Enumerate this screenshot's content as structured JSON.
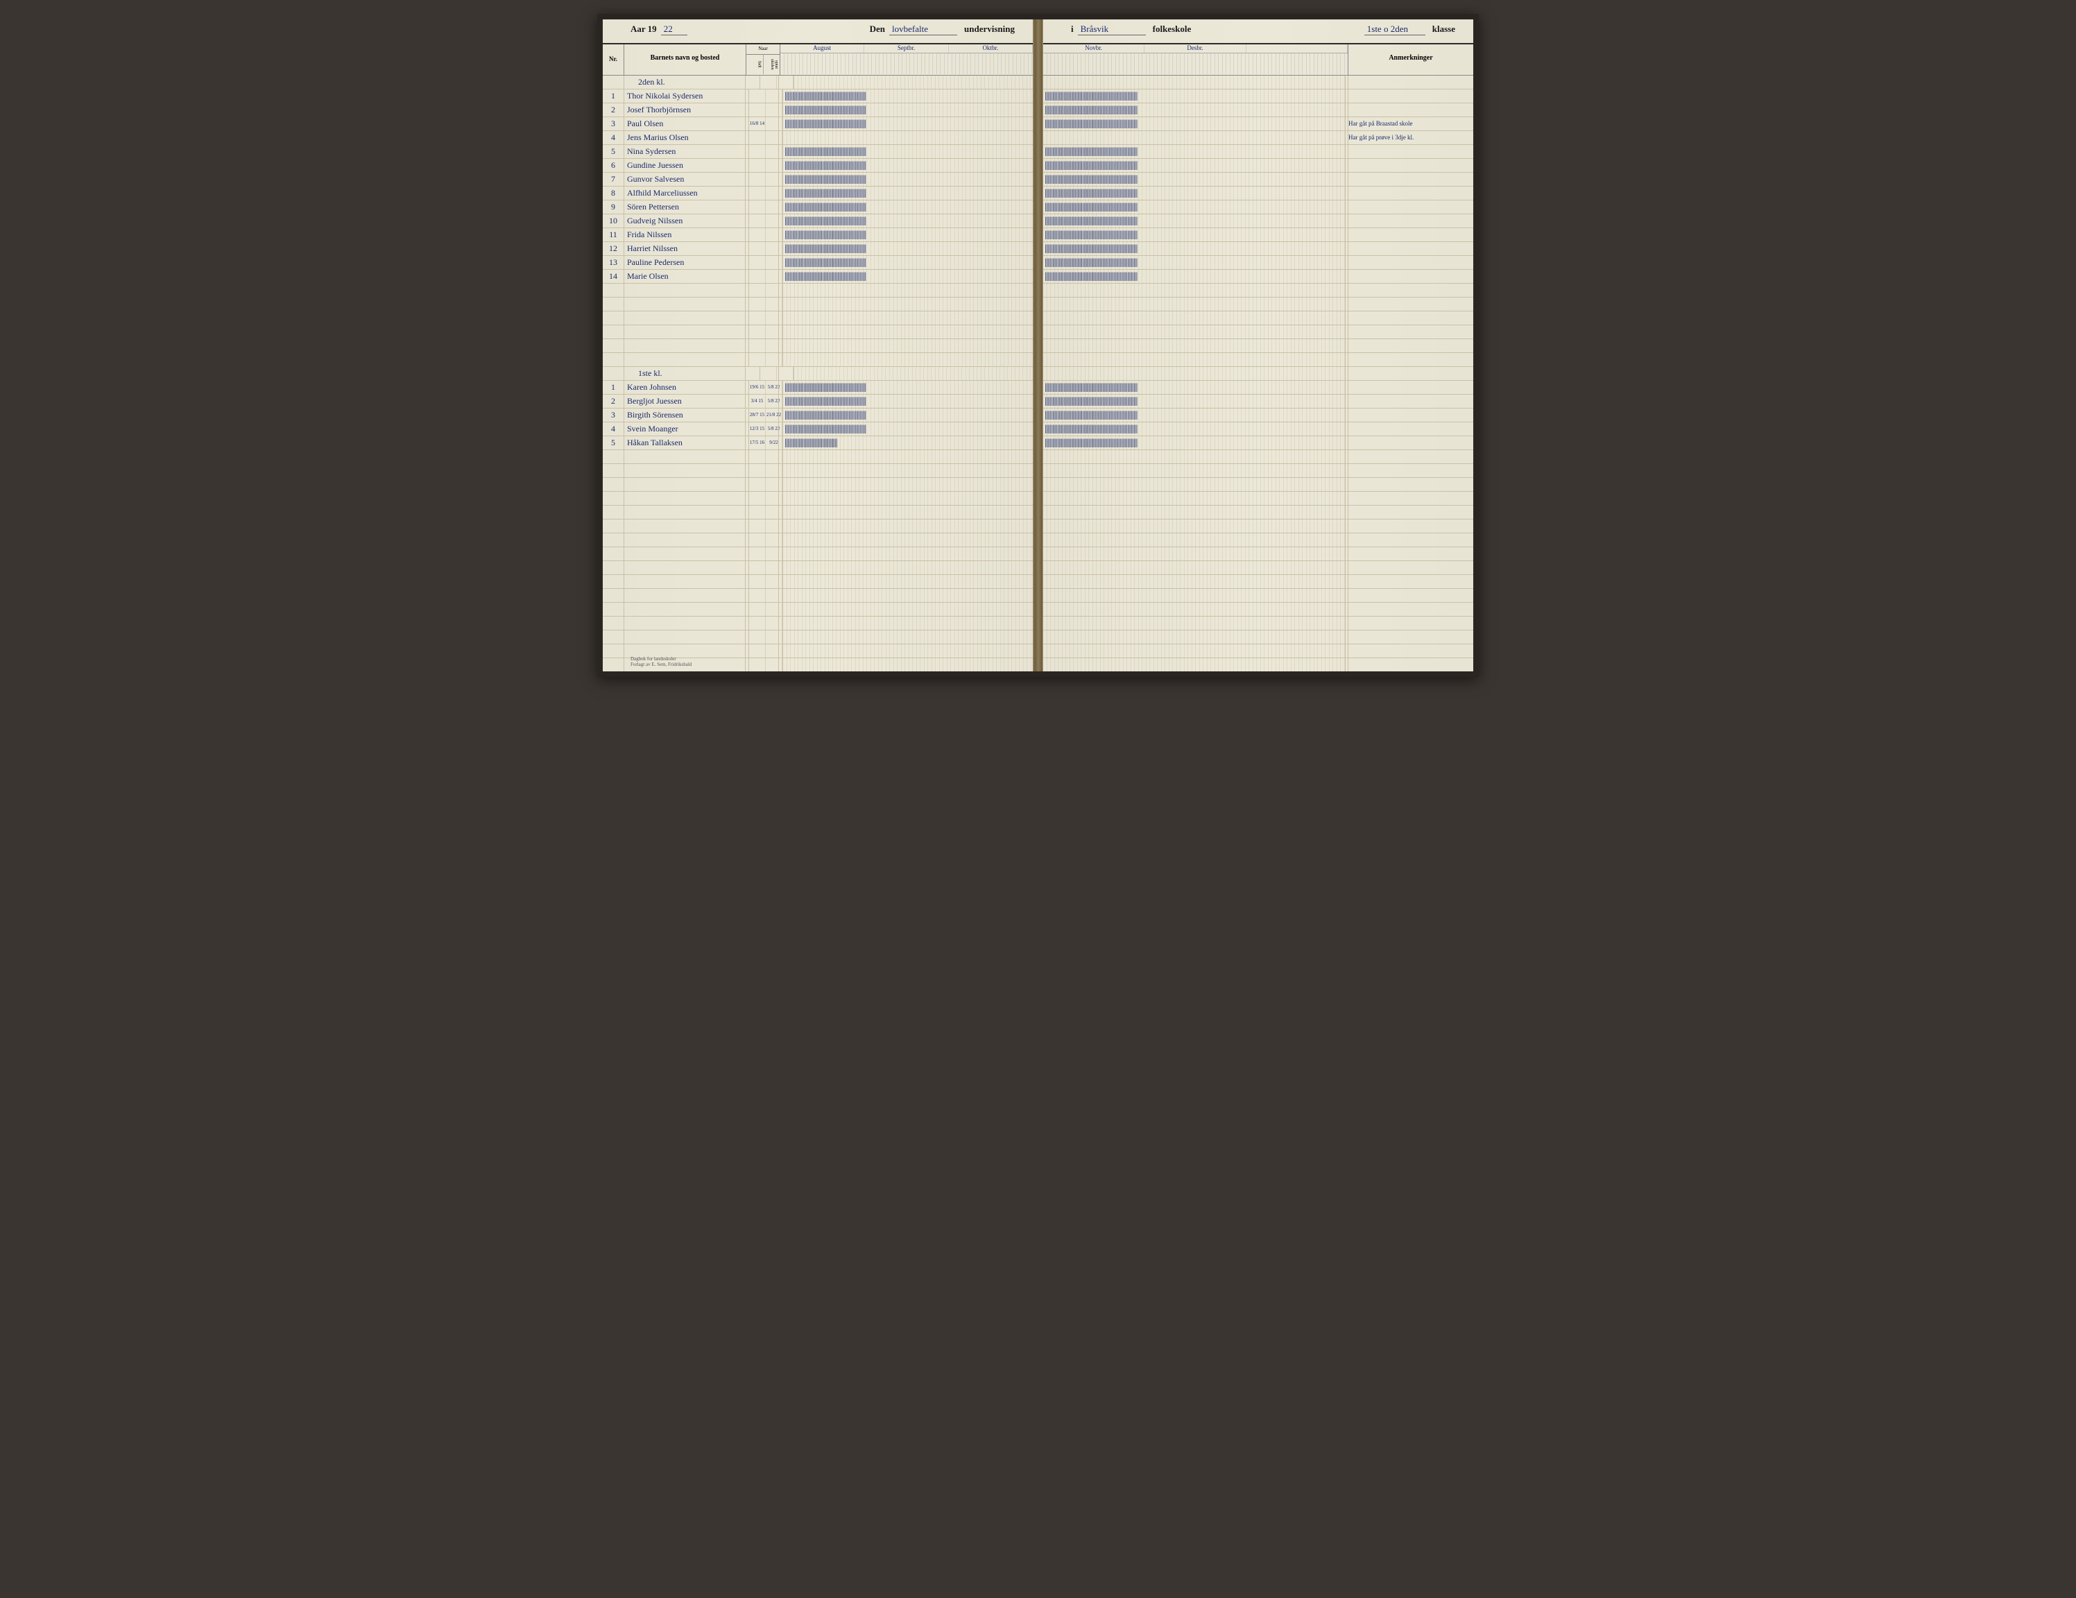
{
  "header": {
    "year_prefix": "Aar 19",
    "year_written": "22",
    "den": "Den",
    "den_written": "lovbefalte",
    "undervisning": "undervisning",
    "i": "i",
    "school_written": "Bråsvik",
    "folkeskole": "folkeskole",
    "klasse_written": "1ste o 2den",
    "klasse": "klasse"
  },
  "columns": {
    "nr": "Nr.",
    "navn": "Barnets navn og bosted",
    "naar": "Naar",
    "fodt": "født",
    "optat": "optat skolen",
    "anmerkninger": "Anmerkninger"
  },
  "months_left": [
    "August",
    "Septbr.",
    "Oktbr."
  ],
  "months_right": [
    "Novbr.",
    "Desbr."
  ],
  "section1_label": "2den kl.",
  "section2_label": "1ste kl.",
  "students1": [
    {
      "nr": "1",
      "name": "Thor Nikolai Sydersen",
      "fodt": "",
      "optat": "",
      "anm": ""
    },
    {
      "nr": "2",
      "name": "Josef Thorbjörnsen",
      "fodt": "",
      "optat": "",
      "anm": ""
    },
    {
      "nr": "3",
      "name": "Paul Olsen",
      "fodt": "16/8 14",
      "optat": "",
      "anm": "Har gåt på Braastad skole"
    },
    {
      "nr": "4",
      "name": "Jens Marius Olsen",
      "fodt": "",
      "optat": "",
      "anm": "Har gåt på prøve i 3dje kl."
    },
    {
      "nr": "5",
      "name": "Nina Sydersen",
      "fodt": "",
      "optat": "",
      "anm": ""
    },
    {
      "nr": "6",
      "name": "Gundine Juessen",
      "fodt": "",
      "optat": "",
      "anm": ""
    },
    {
      "nr": "7",
      "name": "Gunvor Salvesen",
      "fodt": "",
      "optat": "",
      "anm": ""
    },
    {
      "nr": "8",
      "name": "Alfhild Marceliussen",
      "fodt": "",
      "optat": "",
      "anm": ""
    },
    {
      "nr": "9",
      "name": "Sören Pettersen",
      "fodt": "",
      "optat": "",
      "anm": ""
    },
    {
      "nr": "10",
      "name": "Gudveig Nilssen",
      "fodt": "",
      "optat": "",
      "anm": ""
    },
    {
      "nr": "11",
      "name": "Frida Nilssen",
      "fodt": "",
      "optat": "",
      "anm": ""
    },
    {
      "nr": "12",
      "name": "Harriet Nilssen",
      "fodt": "",
      "optat": "",
      "anm": ""
    },
    {
      "nr": "13",
      "name": "Pauline Pedersen",
      "fodt": "",
      "optat": "",
      "anm": ""
    },
    {
      "nr": "14",
      "name": "Marie Olsen",
      "fodt": "",
      "optat": "",
      "anm": ""
    }
  ],
  "students2": [
    {
      "nr": "1",
      "name": "Karen Johnsen",
      "fodt": "19/6 15",
      "optat": "5/8 22",
      "anm": ""
    },
    {
      "nr": "2",
      "name": "Bergljot Juessen",
      "fodt": "3/4 15",
      "optat": "5/8 22",
      "anm": ""
    },
    {
      "nr": "3",
      "name": "Birgith Sörensen",
      "fodt": "28/7 15",
      "optat": "21/8 22",
      "anm": ""
    },
    {
      "nr": "4",
      "name": "Svein Moanger",
      "fodt": "12/3 15",
      "optat": "5/8 22",
      "anm": ""
    },
    {
      "nr": "5",
      "name": "Håkan Tallaksen",
      "fodt": "17/5 16",
      "optat": "9/22",
      "anm": ""
    }
  ],
  "tally_full_left": "|||||||||||||||||||||||||||||||||||||||||||||||||||||||||||||||||",
  "tally_full_right": "||||||||||||||||||||||||||||||||||||||||||||||||||||||||||||||||||||||||||",
  "tally_partial": "||||||||||||||||||||||||||||||||||||||||||",
  "footer": {
    "line1": "Dagbok for landsskoler",
    "line2": "Forlagt av E. Sem, Fridrikshald"
  },
  "colors": {
    "paper": "#e8e4d4",
    "ink_blue": "#1a2a6a",
    "line_dark": "#2a2a2a",
    "line_grid": "#c8c0a8"
  }
}
